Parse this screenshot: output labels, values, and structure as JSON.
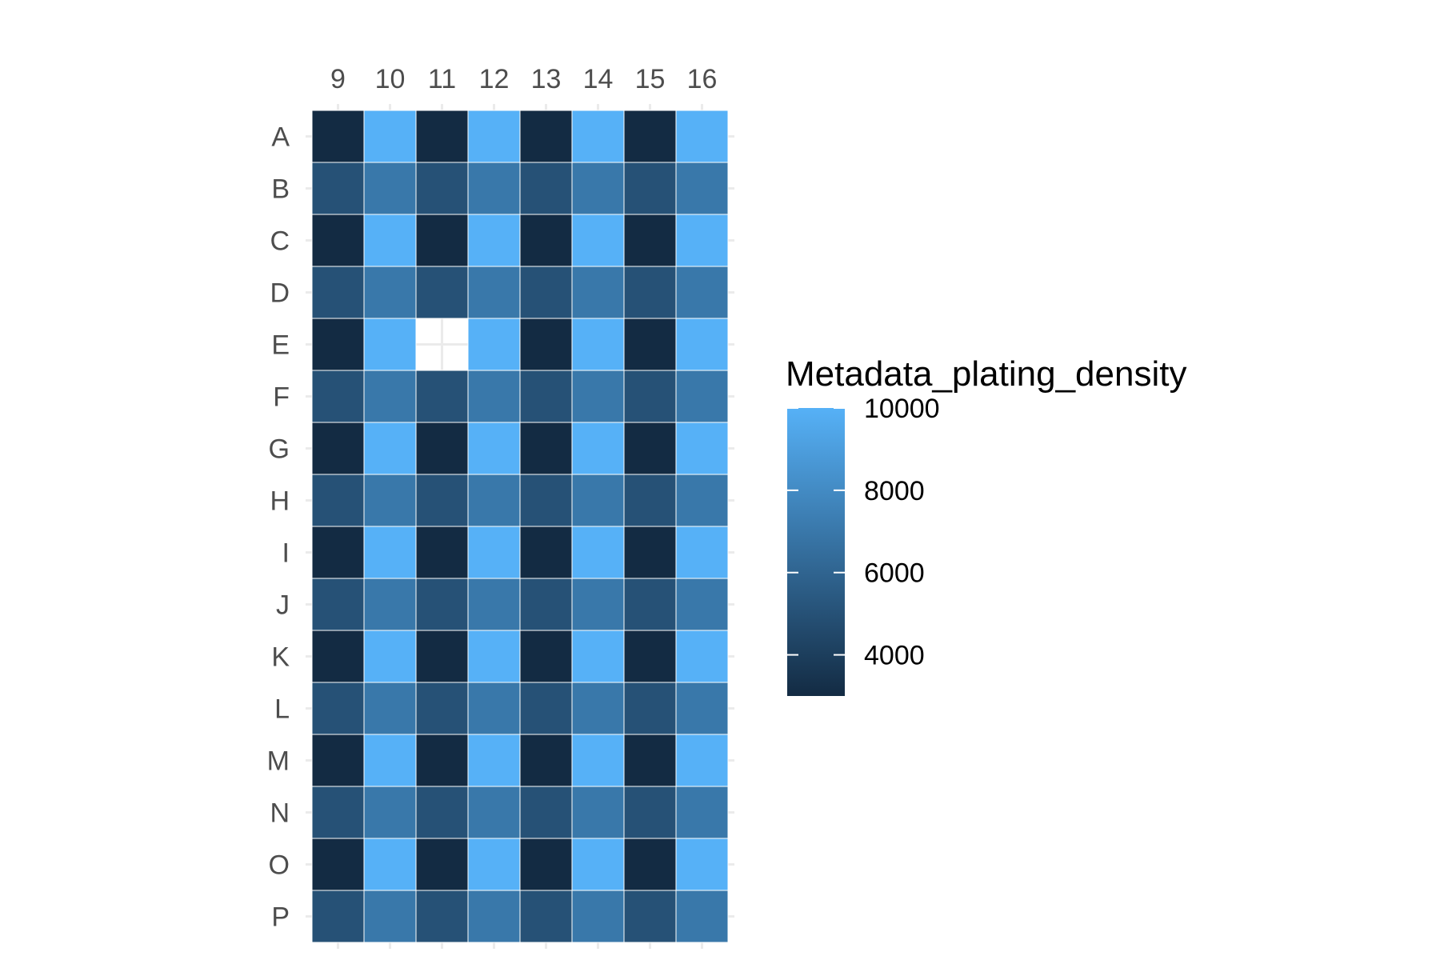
{
  "chart_data": {
    "type": "heatmap",
    "title": "",
    "xlabel": "",
    "ylabel": "",
    "x_position": "top",
    "columns": [
      "9",
      "10",
      "11",
      "12",
      "13",
      "14",
      "15",
      "16"
    ],
    "rows": [
      "A",
      "B",
      "C",
      "D",
      "E",
      "F",
      "G",
      "H",
      "I",
      "J",
      "K",
      "L",
      "M",
      "N",
      "O",
      "P"
    ],
    "values": [
      [
        3000,
        10000,
        3000,
        10000,
        3000,
        10000,
        3000,
        10000
      ],
      [
        5000,
        7000,
        5000,
        7000,
        5000,
        7000,
        5000,
        7000
      ],
      [
        3000,
        10000,
        3000,
        10000,
        3000,
        10000,
        3000,
        10000
      ],
      [
        5000,
        7000,
        5000,
        7000,
        5000,
        7000,
        5000,
        7000
      ],
      [
        3000,
        10000,
        null,
        10000,
        3000,
        10000,
        3000,
        10000
      ],
      [
        5000,
        7000,
        5000,
        7000,
        5000,
        7000,
        5000,
        7000
      ],
      [
        3000,
        10000,
        3000,
        10000,
        3000,
        10000,
        3000,
        10000
      ],
      [
        5000,
        7000,
        5000,
        7000,
        5000,
        7000,
        5000,
        7000
      ],
      [
        3000,
        10000,
        3000,
        10000,
        3000,
        10000,
        3000,
        10000
      ],
      [
        5000,
        7000,
        5000,
        7000,
        5000,
        7000,
        5000,
        7000
      ],
      [
        3000,
        10000,
        3000,
        10000,
        3000,
        10000,
        3000,
        10000
      ],
      [
        5000,
        7000,
        5000,
        7000,
        5000,
        7000,
        5000,
        7000
      ],
      [
        3000,
        10000,
        3000,
        10000,
        3000,
        10000,
        3000,
        10000
      ],
      [
        5000,
        7000,
        5000,
        7000,
        5000,
        7000,
        5000,
        7000
      ],
      [
        3000,
        10000,
        3000,
        10000,
        3000,
        10000,
        3000,
        10000
      ],
      [
        5000,
        7000,
        5000,
        7000,
        5000,
        7000,
        5000,
        7000
      ]
    ],
    "legend": {
      "title": "Metadata_plating_density",
      "position": "right",
      "breaks": [
        10000,
        8000,
        6000,
        4000
      ],
      "labels": [
        "10000",
        "8000",
        "6000",
        "4000"
      ],
      "range": [
        3000,
        10000
      ]
    },
    "color_scale": {
      "low": "#132b43",
      "high": "#56b1f7",
      "na": "#ffffff"
    },
    "grid": true
  }
}
